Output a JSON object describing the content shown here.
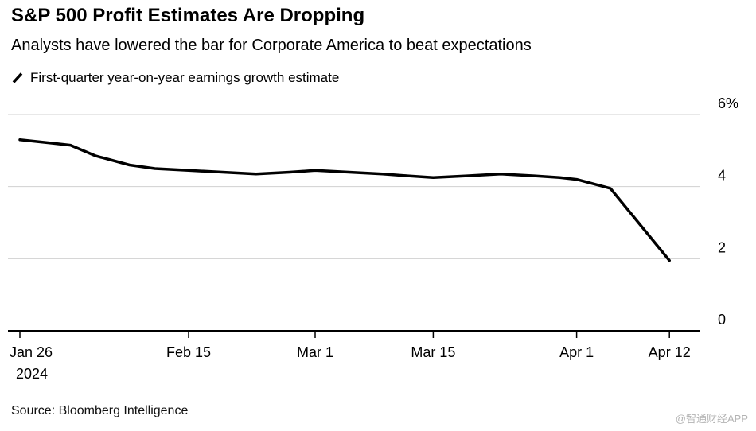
{
  "header": {
    "title": "S&P 500 Profit Estimates Are Dropping",
    "subtitle": "Analysts have lowered the bar for Corporate America to beat expectations"
  },
  "legend": {
    "label": "First-quarter year-on-year earnings growth estimate",
    "marker_color": "#000000"
  },
  "source": "Source: Bloomberg Intelligence",
  "watermark": "@智通财经APP",
  "colors": {
    "line": "#000000",
    "grid": "#d0d0d0",
    "axis": "#000000",
    "text": "#000000"
  },
  "chart_data": {
    "type": "line",
    "title": "S&P 500 Profit Estimates Are Dropping",
    "xlabel": "",
    "ylabel": "First-quarter year-on-year earnings growth estimate (%)",
    "xlim_days": [
      0,
      81
    ],
    "ylim": [
      0,
      6
    ],
    "grid": true,
    "legend_position": "top-left",
    "x_ticks": [
      {
        "pos": 0,
        "label": "Jan 26",
        "sublabel": "2024"
      },
      {
        "pos": 20,
        "label": "Feb 15"
      },
      {
        "pos": 35,
        "label": "Mar 1"
      },
      {
        "pos": 49,
        "label": "Mar 15"
      },
      {
        "pos": 66,
        "label": "Apr 1"
      },
      {
        "pos": 77,
        "label": "Apr 12"
      }
    ],
    "y_ticks": [
      {
        "value": 0,
        "label": "0"
      },
      {
        "value": 2,
        "label": "2"
      },
      {
        "value": 4,
        "label": "4"
      },
      {
        "value": 6,
        "label": "6%"
      }
    ],
    "series": [
      {
        "name": "First-quarter year-on-year earnings growth estimate",
        "color": "#000000",
        "points": [
          [
            0,
            5.3
          ],
          [
            4,
            5.2
          ],
          [
            6,
            5.15
          ],
          [
            9,
            4.85
          ],
          [
            13,
            4.6
          ],
          [
            16,
            4.5
          ],
          [
            20,
            4.45
          ],
          [
            24,
            4.4
          ],
          [
            28,
            4.35
          ],
          [
            32,
            4.4
          ],
          [
            35,
            4.45
          ],
          [
            39,
            4.4
          ],
          [
            43,
            4.35
          ],
          [
            46,
            4.3
          ],
          [
            49,
            4.25
          ],
          [
            53,
            4.3
          ],
          [
            57,
            4.35
          ],
          [
            61,
            4.3
          ],
          [
            64,
            4.25
          ],
          [
            66,
            4.2
          ],
          [
            70,
            3.95
          ],
          [
            77,
            1.95
          ]
        ]
      }
    ]
  }
}
